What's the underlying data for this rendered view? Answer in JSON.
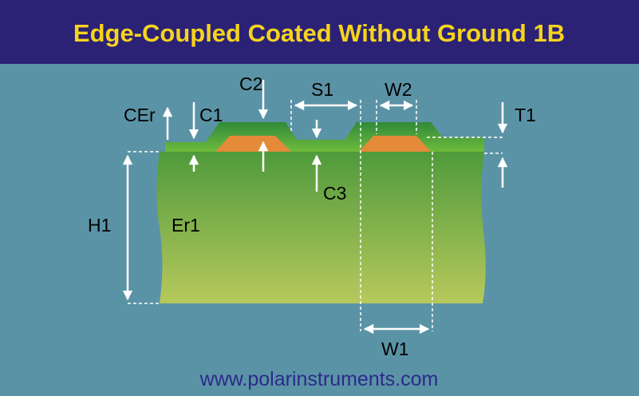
{
  "title": "Edge-Coupled Coated Without Ground 1B",
  "labels": {
    "cer": "CEr",
    "c1": "C1",
    "c2": "C2",
    "s1": "S1",
    "w2": "W2",
    "t1": "T1",
    "c3": "C3",
    "h1": "H1",
    "er1": "Er1",
    "w1": "W1"
  },
  "footer": "www.polarinstruments.com"
}
